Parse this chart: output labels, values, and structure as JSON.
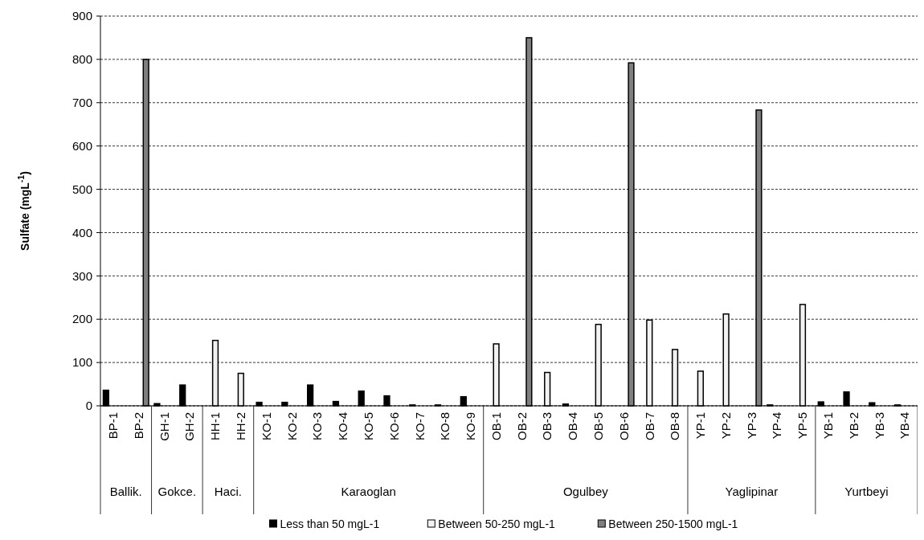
{
  "chart_data": {
    "type": "bar",
    "ylabel": "Sulfate (mgL$^{-1}$)",
    "categories": [
      "BP-1",
      "BP-2",
      "GH-1",
      "GH-2",
      "HH-1",
      "HH-2",
      "KO-1",
      "KO-2",
      "KO-3",
      "KO-4",
      "KO-5",
      "KO-6",
      "KO-7",
      "KO-8",
      "KO-9",
      "OB-1",
      "OB-2",
      "OB-3",
      "OB-4",
      "OB-5",
      "OB-6",
      "OB-7",
      "OB-8",
      "YP-1",
      "YP-2",
      "YP-3",
      "YP-4",
      "YP-5",
      "YB-1",
      "YB-2",
      "YB-3",
      "YB-4"
    ],
    "series": [
      {
        "name": "Less than 50 mgL-1",
        "color": "#000000",
        "values": [
          36,
          null,
          5,
          48,
          null,
          null,
          8,
          8,
          48,
          10,
          34,
          23,
          2,
          2,
          21,
          null,
          null,
          null,
          4,
          null,
          null,
          null,
          null,
          null,
          null,
          null,
          2,
          null,
          9,
          32,
          7,
          2
        ]
      },
      {
        "name": "Between 50-250 mgL-1",
        "color": "#f2f2f2",
        "values": [
          null,
          null,
          null,
          null,
          151,
          75,
          null,
          null,
          null,
          null,
          null,
          null,
          null,
          null,
          null,
          143,
          null,
          77,
          null,
          188,
          null,
          198,
          130,
          80,
          212,
          null,
          null,
          234,
          null,
          null,
          null,
          null
        ]
      },
      {
        "name": "Between 250-1500 mgL-1",
        "color": "#7f7f7f",
        "values": [
          null,
          800,
          null,
          null,
          null,
          null,
          null,
          null,
          null,
          null,
          null,
          null,
          null,
          null,
          null,
          null,
          850,
          null,
          null,
          null,
          792,
          null,
          null,
          null,
          null,
          683,
          null,
          null,
          null,
          null,
          null,
          null
        ]
      }
    ],
    "ylim": [
      0,
      900
    ],
    "yticks": [
      0,
      100,
      200,
      300,
      400,
      500,
      600,
      700,
      800,
      900
    ],
    "grid": "y",
    "legend": "bottom",
    "annotations": [
      "Ballik.",
      "Gokce.",
      "Haci.",
      "Karaoglan",
      "Ogulbey",
      "Yaglipinar",
      "Yurtbeyi"
    ]
  }
}
